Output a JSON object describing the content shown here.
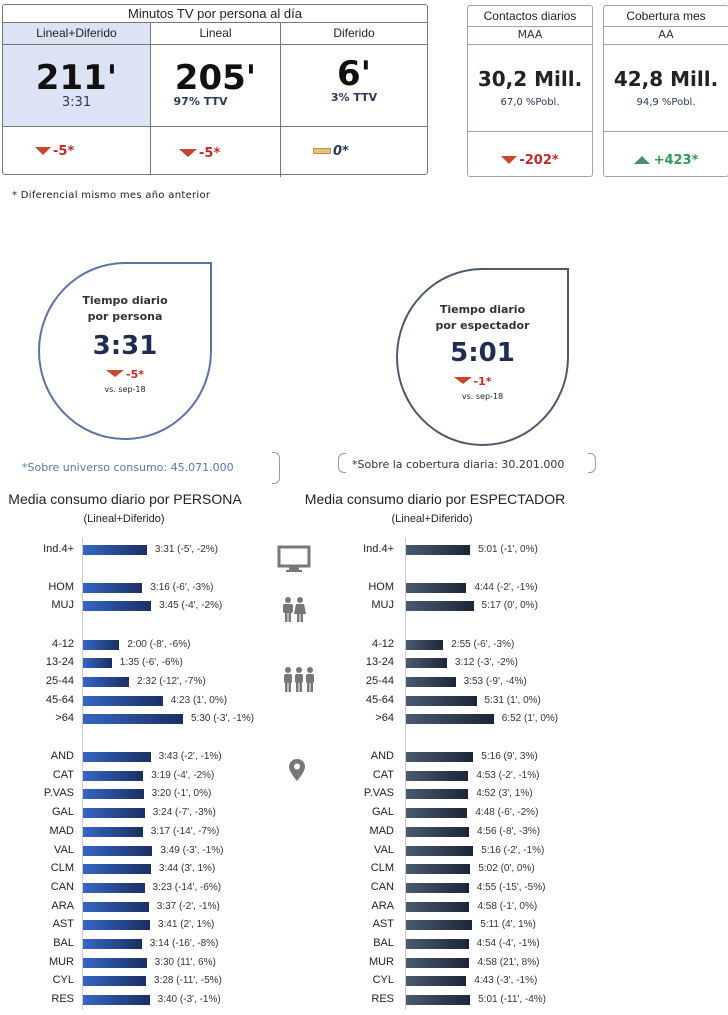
{
  "minutes_table": {
    "title": "Minutos TV por persona al día",
    "columns": [
      {
        "label": "Lineal+Diferido",
        "value": "211'",
        "sub": "3:31",
        "delta": "-5*",
        "trend": "down"
      },
      {
        "label": "Lineal",
        "value": "205'",
        "sub": "97% TTV",
        "delta": "-5*",
        "trend": "down"
      },
      {
        "label": "Diferido",
        "value": "6'",
        "sub": "3% TTV",
        "delta": "0*",
        "trend": "flat"
      }
    ],
    "footnote": "* Diferencial mismo mes año anterior"
  },
  "cards": [
    {
      "title": "Contactos diarios",
      "sub": "MAA",
      "value": "30,2 Mill.",
      "pct": "67,0 %Pobl.",
      "delta": "-202*",
      "trend": "down"
    },
    {
      "title": "Cobertura mes",
      "sub": "AA",
      "value": "42,8 Mill.",
      "pct": "94,9 %Pobl.",
      "delta": "+423*",
      "trend": "up"
    }
  ],
  "drops": [
    {
      "title1": "Tiempo diario",
      "title2": "por persona",
      "value": "3:31",
      "delta": "-5*",
      "vs": "vs. sep-18",
      "note": "*Sobre universo consumo: 45.071.000"
    },
    {
      "title1": "Tiempo diario",
      "title2": "por espectador",
      "value": "5:01",
      "delta": "-1*",
      "vs": "vs. sep-18",
      "note": "*Sobre la cobertura diaria: 30.201.000"
    }
  ],
  "colors": {
    "persona_bar": "#2a4f9e",
    "espectador_bar": "#2c3648",
    "down": "#c8462c",
    "up": "#4a8f6e",
    "accent_bg": "#dbe3f4"
  },
  "icons": [
    "tv-icon",
    "couple-icon",
    "group-icon",
    "location-pin-icon"
  ],
  "chart_data": [
    {
      "type": "bar",
      "orientation": "horizontal",
      "title": "Media consumo diario por PERSONA",
      "subtitle": "(Lineal+Diferido)",
      "categories": [
        "Ind.4+",
        "HOM",
        "MUJ",
        "4-12",
        "13-24",
        "25-44",
        "45-64",
        ">64",
        "AND",
        "CAT",
        "P.VAS",
        "GAL",
        "MAD",
        "VAL",
        "CLM",
        "CAN",
        "ARA",
        "AST",
        "BAL",
        "MUR",
        "CYL",
        "RES"
      ],
      "values": [
        "3:31",
        "3:16",
        "3:45",
        "2:00",
        "1:35",
        "2:32",
        "4:23",
        "5:30",
        "3:43",
        "3:19",
        "3:20",
        "3:24",
        "3:17",
        "3:49",
        "3:44",
        "3:23",
        "3:37",
        "3:41",
        "3:14",
        "3:30",
        "3:28",
        "3:40"
      ],
      "deltas": [
        "(-5', -2%)",
        "(-6', -3%)",
        "(-4', -2%)",
        "(-8', -6%)",
        "(-6', -6%)",
        "(-12', -7%)",
        "(1', 0%)",
        "(-3', -1%)",
        "(-2', -1%)",
        "(-4', -2%)",
        "(-1', 0%)",
        "(-7', -3%)",
        "(-14', -7%)",
        "(-3', -1%)",
        "(3', 1%)",
        "(-14', -6%)",
        "(-2', -1%)",
        "(2', 1%)",
        "(-16', -8%)",
        "(11', 6%)",
        "(-11', -5%)",
        "(-3', -1%)"
      ]
    },
    {
      "type": "bar",
      "orientation": "horizontal",
      "title": "Media consumo diario por ESPECTADOR",
      "subtitle": "(Lineal+Diferido)",
      "categories": [
        "Ind.4+",
        "HOM",
        "MUJ",
        "4-12",
        "13-24",
        "25-44",
        "45-64",
        ">64",
        "AND",
        "CAT",
        "P.VAS",
        "GAL",
        "MAD",
        "VAL",
        "CLM",
        "CAN",
        "ARA",
        "AST",
        "BAL",
        "MUR",
        "CYL",
        "RES"
      ],
      "values": [
        "5:01",
        "4:44",
        "5:17",
        "2:55",
        "3:12",
        "3:53",
        "5:31",
        "6:52",
        "5:16",
        "4:53",
        "4:52",
        "4:48",
        "4:56",
        "5:16",
        "5:02",
        "4:55",
        "4:58",
        "5:11",
        "4:54",
        "4:58",
        "4:43",
        "5:01"
      ],
      "deltas": [
        "(-1', 0%)",
        "(-2', -1%)",
        "(0', 0%)",
        "(-6', -3%)",
        "(-3', -2%)",
        "(-9', -4%)",
        "(1', 0%)",
        "(1', 0%)",
        "(9', 3%)",
        "(-2', -1%)",
        "(3', 1%)",
        "(-6', -2%)",
        "(-8', -3%)",
        "(-2', -1%)",
        "(0', 0%)",
        "(-15', -5%)",
        "(-1', 0%)",
        "(4', 1%)",
        "(-4', -1%)",
        "(21', 8%)",
        "(-3', -1%)",
        "(-11', -4%)"
      ]
    }
  ]
}
